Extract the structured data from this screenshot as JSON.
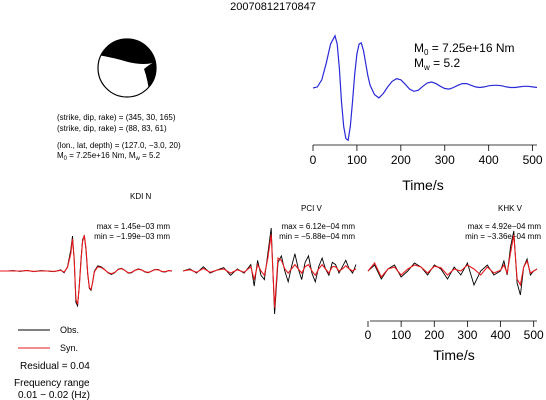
{
  "title": "20070812170847",
  "colors": {
    "observed": "#000000",
    "synthetic": "#e8191c",
    "stf": "#2a2ad8",
    "beachball": "#000000"
  },
  "event_info": {
    "line1": "(strike, dip, rake) = (345, 30, 165)",
    "line2": "(strike, dip, rake) = (88, 83, 61)",
    "line3": "(lon., lat, depth) = (127.0, −3.0, 20)",
    "line4_prefix": "M",
    "line4_sub0": "0",
    "line4_mid": " = 7.25e+16 Nm, M",
    "line4_subw": "w",
    "line4_suffix": " = 5.2"
  },
  "stf": {
    "m0_prefix": "M",
    "m0_sub": "0",
    "m0_value": " = 7.25e+16 Nm",
    "mw_prefix": "M",
    "mw_sub": "w",
    "mw_value": " = 5.2",
    "xlabel": "Time/s"
  },
  "traces_axis": {
    "xlabel": "Time/s"
  },
  "legend": {
    "obs": "Obs.",
    "syn": "Syn."
  },
  "residual": "Residual = 0.04",
  "freq_label": "Frequency range",
  "freq_value": "0.01 − 0.02 (Hz)",
  "chart_data": [
    {
      "type": "line",
      "name": "source-time-function",
      "xlim": [
        0,
        510
      ],
      "ylim": [
        -1.0,
        1.0
      ],
      "xticks": [
        0,
        100,
        200,
        300,
        400,
        500
      ],
      "tick_labels": [
        "0",
        "100",
        "200",
        "300",
        "400",
        "500"
      ],
      "xlabel": "Time/s",
      "grid": false,
      "series": [
        {
          "x": [
            0,
            10,
            20,
            30,
            40,
            50,
            55,
            60,
            65,
            70,
            75,
            80,
            85,
            90,
            95,
            100,
            105,
            110,
            115,
            120,
            125,
            130,
            140,
            150,
            160,
            170,
            180,
            190,
            200,
            210,
            220,
            230,
            240,
            250,
            260,
            270,
            280,
            290,
            300,
            310,
            320,
            330,
            340,
            350,
            360,
            370,
            380,
            390,
            400,
            410,
            420,
            430,
            440,
            450,
            460,
            470,
            480,
            490,
            500,
            510
          ],
          "y": [
            0.0,
            0.02,
            0.15,
            0.45,
            0.8,
            0.95,
            0.8,
            0.35,
            -0.25,
            -0.7,
            -0.92,
            -0.95,
            -0.7,
            -0.25,
            0.25,
            0.62,
            0.8,
            0.82,
            0.68,
            0.45,
            0.22,
            0.05,
            -0.12,
            -0.18,
            -0.1,
            0.02,
            0.12,
            0.17,
            0.15,
            0.07,
            -0.02,
            -0.06,
            -0.04,
            0.03,
            0.09,
            0.11,
            0.08,
            0.03,
            -0.01,
            -0.02,
            0.01,
            0.05,
            0.08,
            0.08,
            0.05,
            0.02,
            0.01,
            0.02,
            0.04,
            0.05,
            0.05,
            0.04,
            0.02,
            0.01,
            0.01,
            0.02,
            0.03,
            0.03,
            0.02,
            0.01
          ]
        }
      ]
    },
    {
      "type": "line",
      "station": "KDI N",
      "max_label": "max = 1.45e−03 mm",
      "min_label": "min = −1.99e−03 mm",
      "max_mm": 0.00145,
      "min_mm": -0.00199,
      "xlim": [
        0,
        510
      ],
      "series": [
        {
          "name": "Obs.",
          "x": [
            0,
            20,
            40,
            60,
            80,
            100,
            120,
            140,
            160,
            180,
            190,
            200,
            210,
            215,
            220,
            225,
            230,
            235,
            240,
            245,
            250,
            255,
            260,
            265,
            270,
            275,
            280,
            290,
            300,
            310,
            320,
            330,
            340,
            350,
            360,
            370,
            380,
            390,
            400,
            410,
            420,
            430,
            440,
            450,
            460,
            470,
            480,
            490,
            500,
            510
          ],
          "y": [
            0.0,
            0.0,
            0.01,
            -0.01,
            0.02,
            -0.02,
            0.01,
            0.0,
            -0.02,
            0.03,
            -0.05,
            0.12,
            0.6,
            1.0,
            0.3,
            -0.9,
            -1.0,
            -0.4,
            0.3,
            0.9,
            1.0,
            0.6,
            -0.1,
            -0.5,
            -0.55,
            -0.3,
            0.0,
            0.15,
            0.12,
            0.05,
            -0.05,
            -0.1,
            -0.05,
            0.05,
            0.08,
            0.02,
            -0.06,
            -0.05,
            0.02,
            0.06,
            0.03,
            -0.03,
            -0.05,
            0.0,
            0.05,
            0.04,
            -0.02,
            -0.03,
            0.01,
            0.0
          ]
        },
        {
          "name": "Syn.",
          "x": [
            0,
            20,
            40,
            60,
            80,
            100,
            120,
            140,
            160,
            180,
            190,
            200,
            210,
            215,
            220,
            225,
            230,
            235,
            240,
            245,
            250,
            255,
            260,
            265,
            270,
            275,
            280,
            290,
            300,
            310,
            320,
            330,
            340,
            350,
            360,
            370,
            380,
            390,
            400,
            410,
            420,
            430,
            440,
            450,
            460,
            470,
            480,
            490,
            500,
            510
          ],
          "y": [
            0.0,
            0.0,
            0.0,
            0.0,
            0.01,
            -0.01,
            0.0,
            0.0,
            -0.01,
            0.02,
            -0.03,
            0.1,
            0.5,
            0.92,
            0.35,
            -0.8,
            -0.95,
            -0.45,
            0.25,
            0.85,
            1.02,
            0.65,
            -0.05,
            -0.48,
            -0.52,
            -0.32,
            -0.02,
            0.12,
            0.1,
            0.04,
            -0.04,
            -0.08,
            -0.04,
            0.04,
            0.07,
            0.02,
            -0.05,
            -0.04,
            0.02,
            0.05,
            0.03,
            -0.02,
            -0.04,
            0.0,
            0.04,
            0.03,
            -0.01,
            -0.02,
            0.01,
            0.0
          ]
        }
      ]
    },
    {
      "type": "line",
      "station": "PCI V",
      "max_label": "max = 6.12e−04 mm",
      "min_label": "min = −5.88e−04 mm",
      "max_mm": 0.000612,
      "min_mm": -0.000588,
      "xlim": [
        0,
        510
      ],
      "series": [
        {
          "name": "Obs.",
          "x": [
            0,
            20,
            40,
            60,
            80,
            100,
            120,
            140,
            160,
            180,
            200,
            210,
            220,
            230,
            240,
            250,
            260,
            270,
            280,
            290,
            300,
            310,
            320,
            330,
            340,
            350,
            360,
            370,
            380,
            390,
            400,
            410,
            420,
            430,
            440,
            450,
            460,
            470,
            480,
            490,
            500,
            510
          ],
          "y": [
            0.0,
            0.05,
            -0.05,
            0.1,
            -0.05,
            0.02,
            0.08,
            -0.1,
            0.05,
            -0.05,
            0.15,
            -0.35,
            0.25,
            -0.1,
            -0.2,
            0.4,
            1.0,
            -1.0,
            0.2,
            0.35,
            0.0,
            -0.25,
            0.1,
            0.4,
            0.05,
            -0.2,
            0.2,
            0.35,
            -0.05,
            -0.25,
            0.1,
            0.3,
            0.05,
            -0.1,
            0.2,
            0.15,
            -0.05,
            0.1,
            0.25,
            0.05,
            -0.05,
            0.15
          ]
        },
        {
          "name": "Syn.",
          "x": [
            0,
            20,
            40,
            60,
            80,
            100,
            120,
            140,
            160,
            180,
            200,
            210,
            220,
            230,
            240,
            250,
            260,
            270,
            280,
            290,
            300,
            310,
            320,
            330,
            340,
            350,
            360,
            370,
            380,
            390,
            400,
            410,
            420,
            430,
            440,
            450,
            460,
            470,
            480,
            490,
            500,
            510
          ],
          "y": [
            0.0,
            0.03,
            -0.03,
            0.06,
            -0.03,
            0.02,
            0.05,
            -0.05,
            0.03,
            -0.03,
            0.1,
            -0.2,
            0.15,
            0.0,
            -0.1,
            0.3,
            0.85,
            -0.85,
            0.3,
            0.25,
            0.05,
            -0.05,
            0.05,
            0.15,
            0.05,
            -0.05,
            0.1,
            0.15,
            0.0,
            -0.1,
            0.05,
            0.15,
            0.05,
            -0.05,
            0.1,
            0.1,
            0.0,
            0.05,
            0.12,
            0.05,
            0.0,
            0.05
          ]
        }
      ]
    },
    {
      "type": "line",
      "station": "KHK V",
      "max_label": "max = 4.92e−04 mm",
      "min_label": "min = −3.36e−04 mm",
      "max_mm": 0.000492,
      "min_mm": -0.000336,
      "xlim": [
        0,
        510
      ],
      "xticks": [
        0,
        100,
        200,
        300,
        400,
        500
      ],
      "tick_labels": [
        "0",
        "100",
        "200",
        "300",
        "400",
        "500"
      ],
      "xlabel": "Time/s",
      "series": [
        {
          "name": "Obs.",
          "x": [
            0,
            20,
            40,
            60,
            80,
            100,
            120,
            140,
            160,
            180,
            200,
            220,
            240,
            260,
            280,
            300,
            320,
            340,
            360,
            380,
            400,
            410,
            420,
            430,
            440,
            450,
            460,
            470,
            480,
            490,
            500,
            510
          ],
          "y": [
            0.0,
            0.15,
            -0.2,
            0.05,
            0.15,
            -0.15,
            0.0,
            0.2,
            0.1,
            -0.1,
            0.15,
            0.05,
            -0.2,
            0.1,
            -0.1,
            0.2,
            -0.35,
            0.0,
            0.15,
            -0.1,
            0.0,
            0.25,
            -0.1,
            0.6,
            1.0,
            -0.3,
            -0.6,
            0.1,
            0.3,
            -0.1,
            0.0,
            0.05
          ]
        },
        {
          "name": "Syn.",
          "x": [
            0,
            20,
            40,
            60,
            80,
            100,
            120,
            140,
            160,
            180,
            200,
            220,
            240,
            260,
            280,
            300,
            320,
            340,
            360,
            380,
            400,
            410,
            420,
            430,
            440,
            450,
            460,
            470,
            480,
            490,
            500,
            510
          ],
          "y": [
            0.0,
            0.2,
            -0.15,
            0.05,
            0.1,
            -0.1,
            0.05,
            0.15,
            0.1,
            -0.05,
            0.12,
            0.08,
            -0.1,
            0.05,
            0.0,
            0.15,
            0.05,
            -0.1,
            0.1,
            -0.05,
            0.02,
            0.15,
            -0.05,
            0.45,
            0.9,
            -0.2,
            -0.35,
            0.1,
            0.25,
            -0.05,
            0.0,
            0.05
          ]
        }
      ]
    }
  ]
}
